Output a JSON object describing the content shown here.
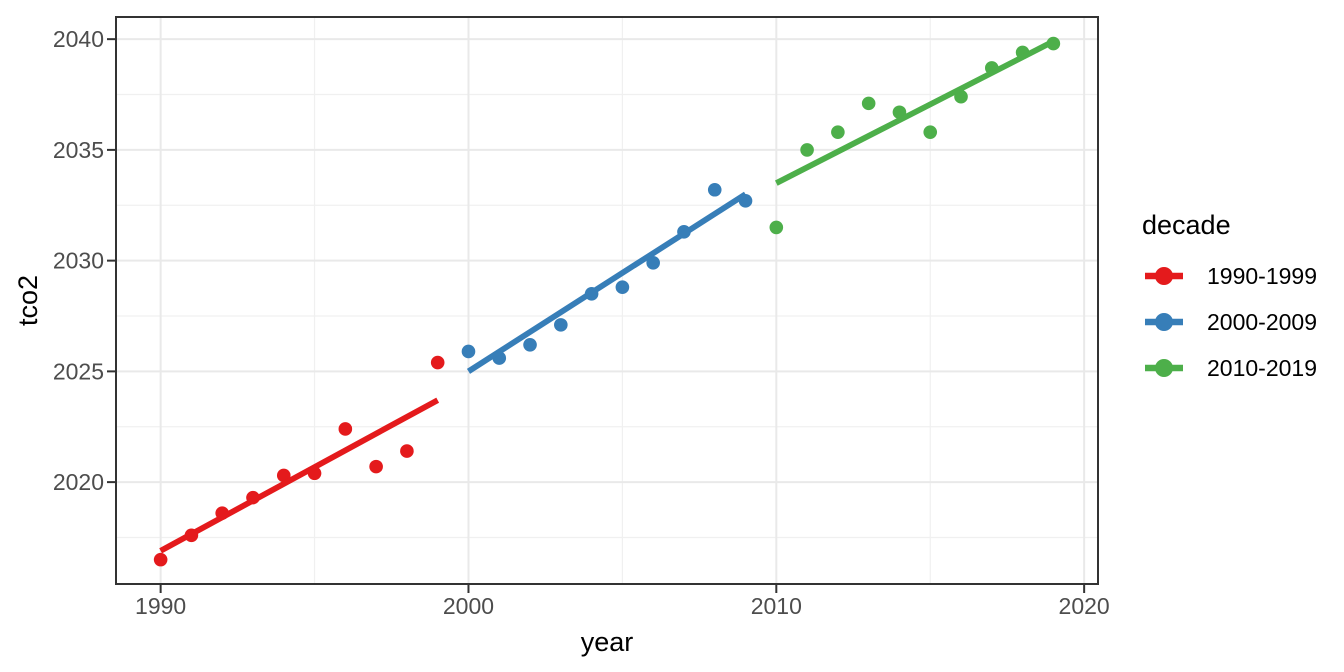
{
  "figure": {
    "background": "#FFFFFF"
  },
  "chart_data": {
    "type": "scatter",
    "title": "",
    "xlabel": "year",
    "ylabel": "tco2",
    "xlim": [
      1988.55,
      2020.45
    ],
    "ylim": [
      2015.4,
      2041.0
    ],
    "x_major_ticks": [
      1990,
      2000,
      2010,
      2020
    ],
    "x_minor_gridlines": [
      1995,
      2005,
      2015
    ],
    "y_major_ticks": [
      2020,
      2025,
      2030,
      2035,
      2040
    ],
    "y_minor_gridlines": [
      2017.5,
      2022.5,
      2027.5,
      2032.5,
      2037.5
    ],
    "grid": true,
    "legend": {
      "title": "decade",
      "position": "right"
    },
    "series": [
      {
        "name": "1990-1999",
        "color": "#E41A1C",
        "x": [
          1990,
          1991,
          1992,
          1993,
          1994,
          1995,
          1996,
          1997,
          1998,
          1999
        ],
        "y": [
          2016.5,
          2017.6,
          2018.6,
          2019.3,
          2020.3,
          2020.4,
          2022.4,
          2020.7,
          2021.4,
          2025.4
        ],
        "trend": {
          "x": [
            1990,
            1999
          ],
          "y": [
            2016.9,
            2023.7
          ]
        }
      },
      {
        "name": "2000-2009",
        "color": "#377EB8",
        "x": [
          2000,
          2001,
          2002,
          2003,
          2004,
          2005,
          2006,
          2007,
          2008,
          2009
        ],
        "y": [
          2025.9,
          2025.6,
          2026.2,
          2027.1,
          2028.5,
          2028.8,
          2029.9,
          2031.3,
          2033.2,
          2032.7
        ],
        "trend": {
          "x": [
            2000,
            2009
          ],
          "y": [
            2025.0,
            2033.0
          ]
        }
      },
      {
        "name": "2010-2019",
        "color": "#4DAF4A",
        "x": [
          2010,
          2011,
          2012,
          2013,
          2014,
          2015,
          2016,
          2017,
          2018,
          2019
        ],
        "y": [
          2031.5,
          2035.0,
          2035.8,
          2037.1,
          2036.7,
          2035.8,
          2037.4,
          2038.7,
          2039.4,
          2039.8
        ],
        "trend": {
          "x": [
            2010,
            2019
          ],
          "y": [
            2033.5,
            2039.9
          ]
        }
      }
    ],
    "theme": {
      "panel_background": "#FFFFFF",
      "panel_border": "#333333",
      "grid_major": "#E9E9E9",
      "grid_minor": "#F0F0F0",
      "tick_color": "#333333",
      "tick_label_color": "#4D4D4D",
      "axis_title_color": "#000000"
    }
  }
}
